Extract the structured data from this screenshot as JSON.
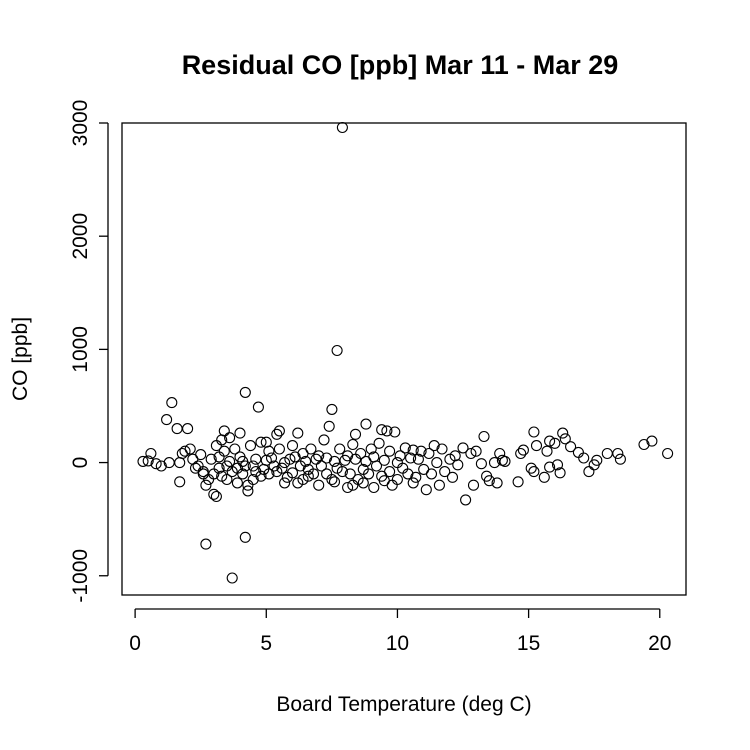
{
  "chart_data": {
    "type": "scatter",
    "title": "Residual CO [ppb] Mar 11 - Mar 29",
    "xlabel": "Board Temperature (deg C)",
    "ylabel": "CO [ppb]",
    "xlim": [
      -0.5,
      21
    ],
    "ylim": [
      -1170,
      3000
    ],
    "xticks": [
      0,
      5,
      10,
      15,
      20
    ],
    "yticks": [
      -1000,
      0,
      1000,
      2000,
      3000
    ],
    "grid": false,
    "marker": "open-circle",
    "color": "#000000",
    "points": [
      [
        0.3,
        10
      ],
      [
        0.5,
        15
      ],
      [
        0.6,
        80
      ],
      [
        0.8,
        -10
      ],
      [
        1.0,
        -30
      ],
      [
        1.2,
        380
      ],
      [
        1.3,
        0
      ],
      [
        1.4,
        530
      ],
      [
        1.6,
        300
      ],
      [
        1.7,
        0
      ],
      [
        1.7,
        -170
      ],
      [
        1.8,
        80
      ],
      [
        1.9,
        100
      ],
      [
        2.0,
        300
      ],
      [
        2.1,
        120
      ],
      [
        2.2,
        30
      ],
      [
        2.3,
        -50
      ],
      [
        2.4,
        -30
      ],
      [
        2.5,
        70
      ],
      [
        2.6,
        -100
      ],
      [
        2.7,
        -200
      ],
      [
        2.7,
        -720
      ],
      [
        2.8,
        -150
      ],
      [
        2.9,
        30
      ],
      [
        3.0,
        -280
      ],
      [
        3.0,
        -100
      ],
      [
        3.1,
        -300
      ],
      [
        3.1,
        150
      ],
      [
        3.2,
        -50
      ],
      [
        3.2,
        50
      ],
      [
        3.3,
        200
      ],
      [
        3.3,
        -120
      ],
      [
        3.4,
        100
      ],
      [
        3.4,
        280
      ],
      [
        3.5,
        -30
      ],
      [
        3.6,
        220
      ],
      [
        3.6,
        10
      ],
      [
        3.7,
        -80
      ],
      [
        3.7,
        -1020
      ],
      [
        3.8,
        120
      ],
      [
        3.9,
        -50
      ],
      [
        4.0,
        50
      ],
      [
        4.0,
        260
      ],
      [
        4.1,
        -100
      ],
      [
        4.1,
        10
      ],
      [
        4.2,
        620
      ],
      [
        4.2,
        -30
      ],
      [
        4.2,
        -660
      ],
      [
        4.3,
        -200
      ],
      [
        4.3,
        -250
      ],
      [
        4.4,
        150
      ],
      [
        4.5,
        -150
      ],
      [
        4.5,
        -30
      ],
      [
        4.6,
        30
      ],
      [
        4.6,
        -80
      ],
      [
        4.7,
        490
      ],
      [
        4.8,
        180
      ],
      [
        4.9,
        -60
      ],
      [
        5.0,
        180
      ],
      [
        5.0,
        20
      ],
      [
        5.1,
        -100
      ],
      [
        5.1,
        100
      ],
      [
        5.2,
        40
      ],
      [
        5.3,
        -30
      ],
      [
        5.4,
        250
      ],
      [
        5.4,
        -80
      ],
      [
        5.5,
        120
      ],
      [
        5.5,
        280
      ],
      [
        5.6,
        -50
      ],
      [
        5.7,
        0
      ],
      [
        5.8,
        -130
      ],
      [
        5.9,
        30
      ],
      [
        6.0,
        -90
      ],
      [
        6.0,
        150
      ],
      [
        6.1,
        50
      ],
      [
        6.2,
        -180
      ],
      [
        6.2,
        260
      ],
      [
        6.3,
        -30
      ],
      [
        6.4,
        80
      ],
      [
        6.4,
        -150
      ],
      [
        6.5,
        10
      ],
      [
        6.6,
        -60
      ],
      [
        6.7,
        120
      ],
      [
        6.8,
        -100
      ],
      [
        6.9,
        30
      ],
      [
        7.0,
        -200
      ],
      [
        7.0,
        60
      ],
      [
        7.1,
        -30
      ],
      [
        7.2,
        200
      ],
      [
        7.3,
        -100
      ],
      [
        7.3,
        40
      ],
      [
        7.4,
        320
      ],
      [
        7.5,
        470
      ],
      [
        7.5,
        -150
      ],
      [
        7.6,
        10
      ],
      [
        7.7,
        990
      ],
      [
        7.7,
        -50
      ],
      [
        7.8,
        120
      ],
      [
        7.9,
        2960
      ],
      [
        7.9,
        -80
      ],
      [
        8.0,
        20
      ],
      [
        8.1,
        -220
      ],
      [
        8.1,
        60
      ],
      [
        8.2,
        -100
      ],
      [
        8.3,
        160
      ],
      [
        8.3,
        -200
      ],
      [
        8.4,
        250
      ],
      [
        8.4,
        30
      ],
      [
        8.5,
        -150
      ],
      [
        8.6,
        80
      ],
      [
        8.7,
        -60
      ],
      [
        8.8,
        340
      ],
      [
        8.8,
        10
      ],
      [
        8.9,
        -100
      ],
      [
        9.0,
        120
      ],
      [
        9.1,
        -220
      ],
      [
        9.1,
        50
      ],
      [
        9.2,
        -30
      ],
      [
        9.3,
        170
      ],
      [
        9.4,
        -120
      ],
      [
        9.4,
        290
      ],
      [
        9.5,
        20
      ],
      [
        9.6,
        280
      ],
      [
        9.7,
        -80
      ],
      [
        9.7,
        100
      ],
      [
        9.8,
        -200
      ],
      [
        9.9,
        270
      ],
      [
        10.0,
        0
      ],
      [
        10.0,
        -150
      ],
      [
        10.1,
        60
      ],
      [
        10.2,
        -50
      ],
      [
        10.3,
        130
      ],
      [
        10.4,
        -100
      ],
      [
        10.5,
        40
      ],
      [
        10.6,
        110
      ],
      [
        10.7,
        -130
      ],
      [
        10.8,
        30
      ],
      [
        10.9,
        100
      ],
      [
        11.0,
        -60
      ],
      [
        11.1,
        -240
      ],
      [
        11.2,
        80
      ],
      [
        11.3,
        -100
      ],
      [
        11.4,
        150
      ],
      [
        11.5,
        0
      ],
      [
        11.6,
        -200
      ],
      [
        11.7,
        120
      ],
      [
        11.8,
        -80
      ],
      [
        12.0,
        30
      ],
      [
        12.1,
        -130
      ],
      [
        12.2,
        60
      ],
      [
        12.3,
        -20
      ],
      [
        12.5,
        130
      ],
      [
        12.6,
        -330
      ],
      [
        12.8,
        80
      ],
      [
        12.9,
        -200
      ],
      [
        13.0,
        100
      ],
      [
        13.2,
        -10
      ],
      [
        13.3,
        230
      ],
      [
        13.4,
        -120
      ],
      [
        13.5,
        -160
      ],
      [
        13.7,
        0
      ],
      [
        13.8,
        -180
      ],
      [
        13.9,
        80
      ],
      [
        14.0,
        20
      ],
      [
        14.1,
        10
      ],
      [
        14.6,
        -170
      ],
      [
        14.7,
        80
      ],
      [
        14.8,
        110
      ],
      [
        15.1,
        -50
      ],
      [
        15.2,
        270
      ],
      [
        15.2,
        -80
      ],
      [
        15.3,
        150
      ],
      [
        15.6,
        -130
      ],
      [
        15.7,
        100
      ],
      [
        15.8,
        190
      ],
      [
        15.8,
        -40
      ],
      [
        16.0,
        170
      ],
      [
        16.1,
        -20
      ],
      [
        16.2,
        -90
      ],
      [
        16.3,
        260
      ],
      [
        16.4,
        210
      ],
      [
        16.6,
        140
      ],
      [
        16.9,
        90
      ],
      [
        17.1,
        40
      ],
      [
        17.3,
        -80
      ],
      [
        17.5,
        -20
      ],
      [
        17.6,
        20
      ],
      [
        18.0,
        80
      ],
      [
        18.4,
        80
      ],
      [
        18.5,
        30
      ],
      [
        19.4,
        160
      ],
      [
        19.7,
        190
      ],
      [
        20.3,
        80
      ],
      [
        2.6,
        -80
      ],
      [
        3.5,
        -150
      ],
      [
        4.8,
        -120
      ],
      [
        5.7,
        -180
      ],
      [
        6.6,
        -120
      ],
      [
        7.6,
        -170
      ],
      [
        8.7,
        -180
      ],
      [
        9.5,
        -160
      ],
      [
        10.6,
        -180
      ],
      [
        3.9,
        -180
      ]
    ]
  }
}
